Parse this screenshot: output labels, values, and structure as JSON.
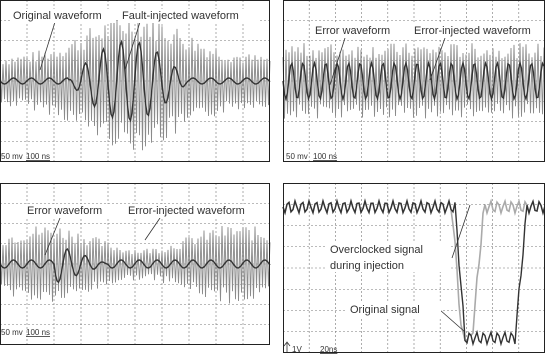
{
  "panels": [
    {
      "labels": [
        "Original waveform",
        "Fault-injected waveform"
      ],
      "volt_scale": "50 mv",
      "time_scale": "100 ns"
    },
    {
      "labels": [
        "Error waveform",
        "Error-injected waveform"
      ],
      "volt_scale": "50 mv",
      "time_scale": "100 ns"
    },
    {
      "labels": [
        "Error waveform",
        "Error-injected waveform"
      ],
      "volt_scale": "50 mv",
      "time_scale": "100 ns"
    },
    {
      "labels": [
        "Overclocked signal",
        "during injection",
        "Original signal"
      ],
      "volt_scale": "1V",
      "time_scale": "20ns"
    }
  ]
}
